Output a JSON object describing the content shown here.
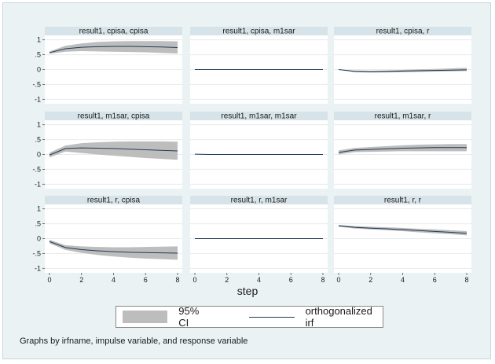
{
  "chart_data": {
    "type": "line",
    "layout": "3x3 grid of panels",
    "xlabel": "step",
    "x": [
      0,
      1,
      2,
      3,
      4,
      5,
      6,
      7,
      8
    ],
    "x_ticks": [
      0,
      2,
      4,
      6,
      8
    ],
    "xlim": [
      0,
      8
    ],
    "y_ticks": [
      1,
      0.5,
      0,
      -0.5,
      -1
    ],
    "y_tick_labels": [
      "1",
      ".5",
      "0",
      "-.5",
      "-1"
    ],
    "ylim": [
      -1.15,
      1.15
    ],
    "grid": "horizontal",
    "legend": {
      "position": "bottom",
      "entries": [
        "95% CI",
        "orthogonalized irf"
      ]
    },
    "colors": {
      "background": "#eaf2f3",
      "panel": "#ffffff",
      "strip": "#d6e3e8",
      "ci": "#bdbdbd",
      "line": "#1f3b57",
      "grid": "#e6ecee"
    },
    "panels": [
      {
        "title": "result1, cpisa, cpisa",
        "irf": [
          0.57,
          0.7,
          0.75,
          0.77,
          0.78,
          0.78,
          0.77,
          0.76,
          0.74
        ],
        "lower": [
          0.53,
          0.6,
          0.62,
          0.61,
          0.6,
          0.59,
          0.58,
          0.56,
          0.54
        ],
        "upper": [
          0.61,
          0.8,
          0.88,
          0.93,
          0.95,
          0.96,
          0.96,
          0.96,
          0.95
        ]
      },
      {
        "title": "result1, cpisa, m1sar",
        "irf": [
          0,
          0,
          0,
          0,
          0,
          0,
          0,
          0,
          0
        ],
        "lower": [
          0,
          0,
          0,
          0,
          0,
          0,
          0,
          0,
          0
        ],
        "upper": [
          0,
          0,
          0,
          0,
          0,
          0,
          0,
          0,
          0
        ]
      },
      {
        "title": "result1, cpisa, r",
        "irf": [
          0,
          -0.06,
          -0.07,
          -0.06,
          -0.05,
          -0.04,
          -0.03,
          -0.02,
          -0.01
        ],
        "lower": [
          0,
          -0.09,
          -0.1,
          -0.1,
          -0.09,
          -0.08,
          -0.07,
          -0.06,
          -0.05
        ],
        "upper": [
          0,
          -0.03,
          -0.04,
          -0.03,
          -0.01,
          0.01,
          0.02,
          0.04,
          0.06
        ]
      },
      {
        "title": "result1, m1sar, cpisa",
        "irf": [
          -0.02,
          0.2,
          0.22,
          0.21,
          0.2,
          0.18,
          0.16,
          0.14,
          0.12
        ],
        "lower": [
          -0.1,
          0.1,
          0.05,
          0.0,
          -0.04,
          -0.08,
          -0.12,
          -0.15,
          -0.18
        ],
        "upper": [
          0.06,
          0.3,
          0.38,
          0.41,
          0.43,
          0.44,
          0.44,
          0.44,
          0.43
        ]
      },
      {
        "title": "result1, m1sar, m1sar",
        "irf": [
          0.01,
          0.0,
          0.0,
          0.0,
          0.0,
          0.0,
          0.0,
          0.0,
          0.0
        ],
        "lower": [
          0.0,
          -0.01,
          -0.01,
          -0.01,
          -0.01,
          -0.01,
          -0.01,
          -0.01,
          -0.01
        ],
        "upper": [
          0.02,
          0.01,
          0.01,
          0.01,
          0.01,
          0.01,
          0.01,
          0.01,
          0.01
        ]
      },
      {
        "title": "result1, m1sar, r",
        "irf": [
          0.07,
          0.15,
          0.17,
          0.19,
          0.21,
          0.22,
          0.23,
          0.23,
          0.23
        ],
        "lower": [
          0.0,
          0.08,
          0.09,
          0.1,
          0.11,
          0.11,
          0.11,
          0.11,
          0.11
        ],
        "upper": [
          0.14,
          0.22,
          0.25,
          0.28,
          0.31,
          0.33,
          0.34,
          0.35,
          0.35
        ]
      },
      {
        "title": "result1, r, cpisa",
        "irf": [
          -0.1,
          -0.3,
          -0.37,
          -0.41,
          -0.44,
          -0.46,
          -0.47,
          -0.48,
          -0.49
        ],
        "lower": [
          -0.16,
          -0.38,
          -0.48,
          -0.55,
          -0.6,
          -0.64,
          -0.67,
          -0.69,
          -0.71
        ],
        "upper": [
          -0.04,
          -0.22,
          -0.26,
          -0.28,
          -0.29,
          -0.29,
          -0.28,
          -0.27,
          -0.26
        ]
      },
      {
        "title": "result1, r, m1sar",
        "irf": [
          0,
          0,
          0,
          0,
          0,
          0,
          0,
          0,
          0
        ],
        "lower": [
          0,
          0,
          0,
          0,
          0,
          0,
          0,
          0,
          0
        ],
        "upper": [
          0,
          0,
          0,
          0,
          0,
          0,
          0,
          0,
          0
        ]
      },
      {
        "title": "result1, r, r",
        "irf": [
          0.43,
          0.38,
          0.35,
          0.33,
          0.3,
          0.27,
          0.24,
          0.21,
          0.18
        ],
        "lower": [
          0.4,
          0.34,
          0.31,
          0.28,
          0.25,
          0.21,
          0.18,
          0.15,
          0.11
        ],
        "upper": [
          0.46,
          0.42,
          0.4,
          0.38,
          0.36,
          0.33,
          0.31,
          0.28,
          0.25
        ]
      }
    ]
  },
  "note": "Graphs by irfname, impulse variable, and response variable"
}
